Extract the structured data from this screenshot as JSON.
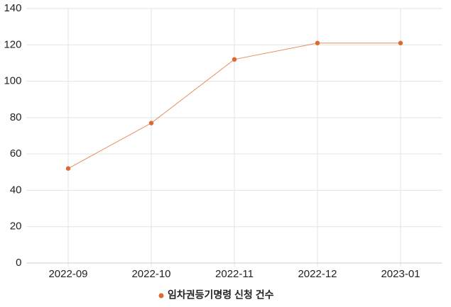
{
  "chart_data": {
    "type": "line",
    "categories": [
      "2022-09",
      "2022-10",
      "2022-11",
      "2022-12",
      "2023-01"
    ],
    "series": [
      {
        "name": "임차권등기명령 신청 건수",
        "color": "#dc6a2e",
        "values": [
          52,
          77,
          112,
          121,
          121
        ]
      }
    ],
    "ylim": [
      0,
      140
    ],
    "yticks": [
      0,
      20,
      40,
      60,
      80,
      100,
      120,
      140
    ],
    "grid": true,
    "legend": "bottom"
  }
}
